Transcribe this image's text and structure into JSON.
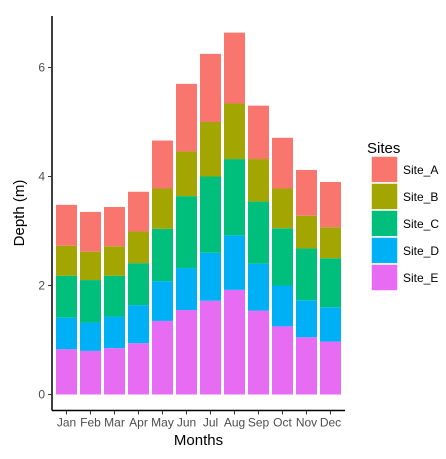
{
  "chart_data": {
    "type": "bar",
    "stacked": true,
    "title": "",
    "xlabel": "Months",
    "ylabel": "Depth (m)",
    "categories": [
      "Jan",
      "Feb",
      "Mar",
      "Apr",
      "May",
      "Jun",
      "Jul",
      "Aug",
      "Sep",
      "Oct",
      "Nov",
      "Dec"
    ],
    "ylim": [
      0,
      7
    ],
    "yticks": [
      0,
      2,
      4,
      6
    ],
    "grid": false,
    "legend": {
      "title": "Sites",
      "position": "right"
    },
    "stack_order_bottom_to_top": [
      "Site_E",
      "Site_D",
      "Site_C",
      "Site_B",
      "Site_A"
    ],
    "series": [
      {
        "name": "Site_A",
        "color": "#F8766D",
        "values": [
          0.75,
          0.73,
          0.72,
          0.73,
          0.88,
          1.24,
          1.25,
          1.3,
          0.98,
          0.93,
          0.84,
          0.83
        ]
      },
      {
        "name": "Site_B",
        "color": "#A3A500",
        "values": [
          0.55,
          0.52,
          0.54,
          0.58,
          0.74,
          0.82,
          1.0,
          1.02,
          0.78,
          0.73,
          0.6,
          0.57
        ]
      },
      {
        "name": "Site_C",
        "color": "#00BF7D",
        "values": [
          0.77,
          0.78,
          0.75,
          0.77,
          0.96,
          1.32,
          1.4,
          1.4,
          1.14,
          1.05,
          0.95,
          0.9
        ]
      },
      {
        "name": "Site_D",
        "color": "#00B0F6",
        "values": [
          0.58,
          0.52,
          0.58,
          0.7,
          0.73,
          0.77,
          0.88,
          1.0,
          0.86,
          0.75,
          0.68,
          0.63
        ]
      },
      {
        "name": "Site_E",
        "color": "#E76BF3",
        "values": [
          0.83,
          0.8,
          0.85,
          0.94,
          1.35,
          1.55,
          1.72,
          1.92,
          1.54,
          1.25,
          1.05,
          0.97
        ]
      }
    ]
  }
}
